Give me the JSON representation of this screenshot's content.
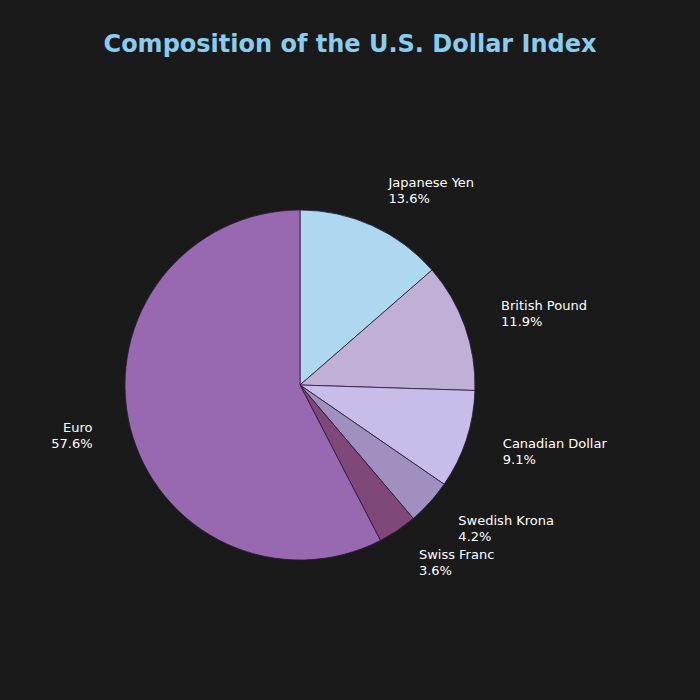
{
  "chart_data": {
    "type": "pie",
    "title": "Composition of the U.S. Dollar Index",
    "categories": [
      "Japanese Yen",
      "British Pound",
      "Canadian Dollar",
      "Swedish Krona",
      "Swiss Franc",
      "Euro"
    ],
    "values": [
      13.6,
      11.9,
      9.1,
      4.2,
      3.6,
      57.6
    ],
    "value_labels": [
      "13.6%",
      "11.9%",
      "9.1%",
      "4.2%",
      "3.6%",
      "57.6%"
    ],
    "colors": [
      "#add8f0",
      "#c0b0d8",
      "#c8bce8",
      "#a090c0",
      "#804878",
      "#9868b0"
    ],
    "data_labels": true
  }
}
